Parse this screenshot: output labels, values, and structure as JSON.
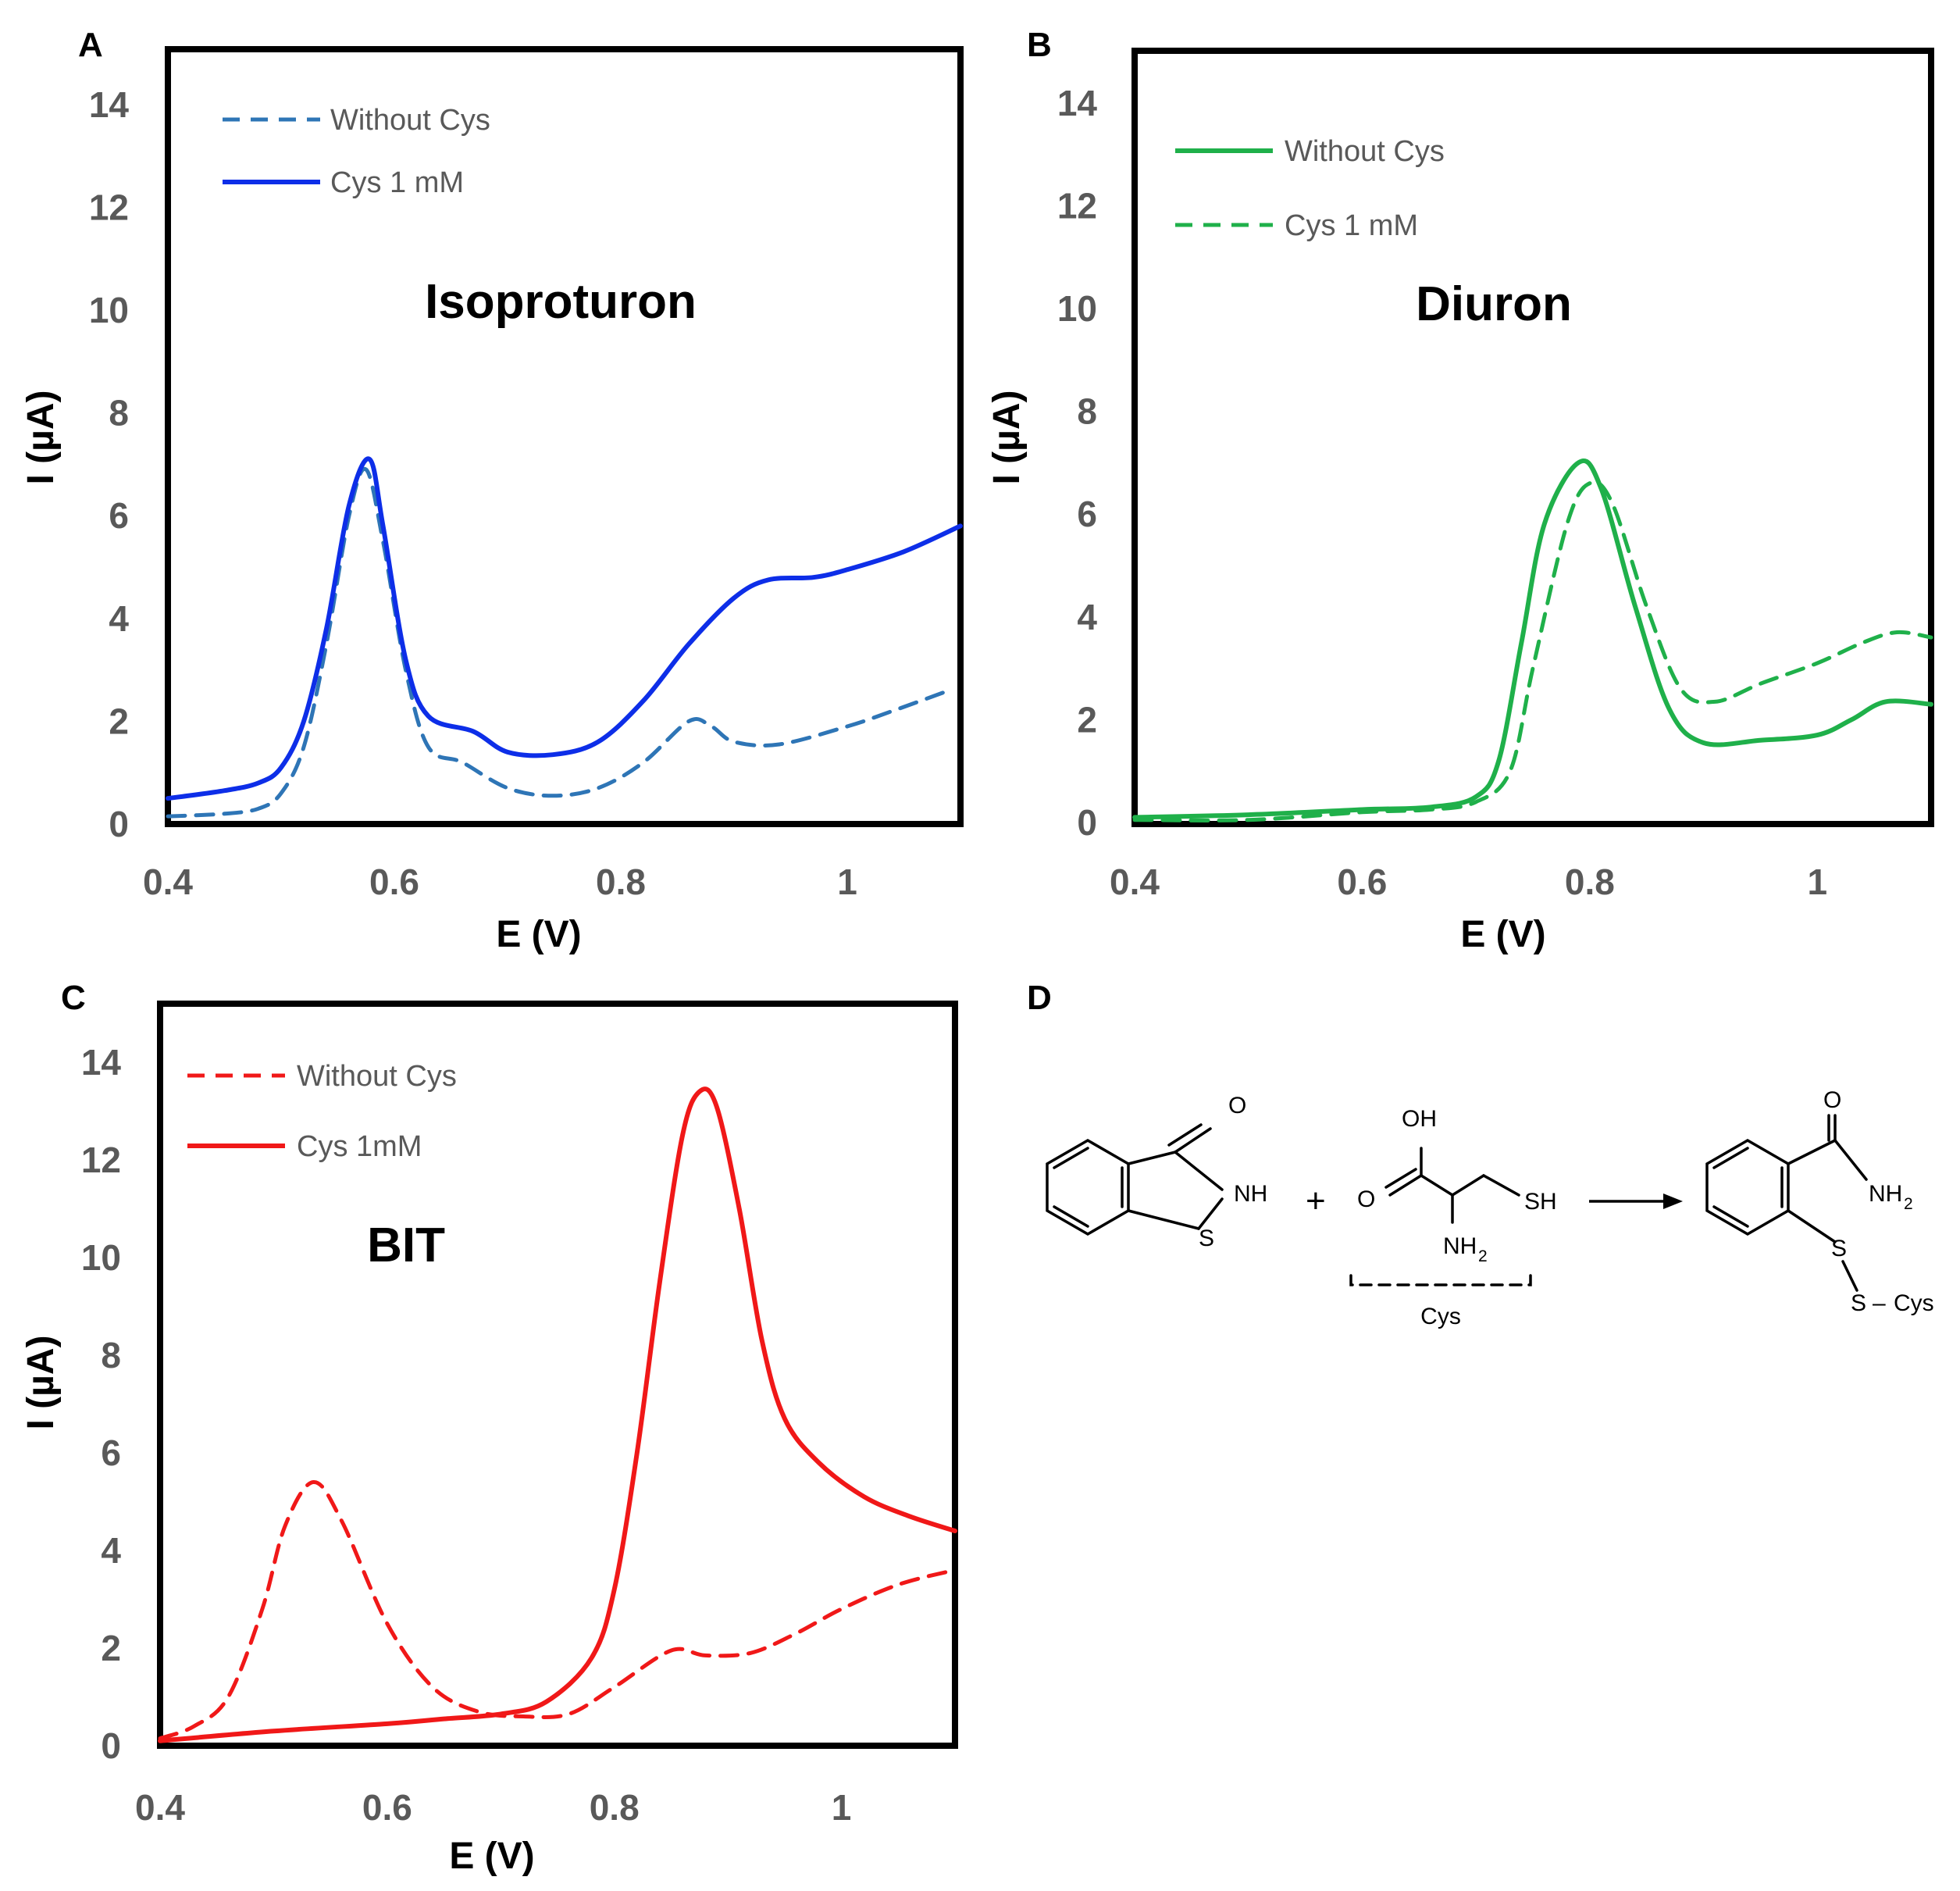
{
  "panels_meta": {
    "A": {
      "letter": "A",
      "analyte": "Isoproturon",
      "legend": [
        "Without Cys",
        "Cys 1 mM"
      ]
    },
    "B": {
      "letter": "B",
      "analyte": "Diuron",
      "legend": [
        "Without Cys",
        "Cys 1 mM"
      ]
    },
    "C": {
      "letter": "C",
      "analyte": "BIT",
      "legend": [
        "Without Cys",
        "Cys 1mM"
      ]
    }
  },
  "chart_data": [
    {
      "panel": "A",
      "type": "line",
      "title": "Isoproturon",
      "xlabel": "E (V)",
      "ylabel": "I (µA)",
      "xlim": [
        0.4,
        1.1
      ],
      "ylim": [
        0,
        15
      ],
      "xticks": [
        0.4,
        0.6,
        0.8,
        1
      ],
      "xtick_labels": [
        "0.4",
        "0.6",
        "0.8",
        "1"
      ],
      "yticks": [
        0,
        2,
        4,
        6,
        8,
        10,
        12,
        14
      ],
      "ytick_labels": [
        "0",
        "2",
        "4",
        "6",
        "8",
        "10",
        "12",
        "14"
      ],
      "legend_position": "top-left",
      "series": [
        {
          "name": "Without Cys",
          "color": "#2e75b6",
          "style": "dashed",
          "x": [
            0.4,
            0.45,
            0.48,
            0.5,
            0.52,
            0.54,
            0.56,
            0.575,
            0.59,
            0.61,
            0.63,
            0.66,
            0.7,
            0.74,
            0.78,
            0.82,
            0.86,
            0.88,
            0.9,
            0.94,
            1.0,
            1.04,
            1.09
          ],
          "y": [
            0.15,
            0.2,
            0.3,
            0.6,
            1.5,
            3.5,
            6.0,
            6.9,
            5.5,
            3.0,
            1.5,
            1.2,
            0.7,
            0.55,
            0.7,
            1.2,
            2.0,
            1.9,
            1.6,
            1.55,
            1.9,
            2.2,
            2.6
          ]
        },
        {
          "name": "Cys 1 mM",
          "color": "#0d2ee8",
          "style": "solid",
          "x": [
            0.4,
            0.45,
            0.48,
            0.5,
            0.52,
            0.54,
            0.56,
            0.578,
            0.59,
            0.61,
            0.63,
            0.67,
            0.7,
            0.74,
            0.78,
            0.82,
            0.86,
            0.9,
            0.93,
            0.97,
            1.0,
            1.05,
            1.1
          ],
          "y": [
            0.5,
            0.65,
            0.8,
            1.1,
            2.0,
            3.8,
            6.2,
            7.1,
            5.8,
            3.2,
            2.1,
            1.8,
            1.4,
            1.35,
            1.6,
            2.4,
            3.5,
            4.4,
            4.75,
            4.8,
            4.95,
            5.3,
            5.8
          ]
        }
      ]
    },
    {
      "panel": "B",
      "type": "line",
      "title": "Diuron",
      "xlabel": "E (V)",
      "ylabel": "I (µA)",
      "xlim": [
        0.4,
        1.1
      ],
      "ylim": [
        0,
        15
      ],
      "xticks": [
        0.4,
        0.6,
        0.8,
        1
      ],
      "xtick_labels": [
        "0.4",
        "0.6",
        "0.8",
        "1"
      ],
      "yticks": [
        0,
        2,
        4,
        6,
        8,
        10,
        12,
        14
      ],
      "ytick_labels": [
        "0",
        "2",
        "4",
        "6",
        "8",
        "10",
        "12",
        "14"
      ],
      "legend_position": "top-left",
      "series": [
        {
          "name": "Without Cys",
          "color": "#1fb04a",
          "style": "solid",
          "x": [
            0.4,
            0.5,
            0.6,
            0.66,
            0.7,
            0.72,
            0.74,
            0.76,
            0.79,
            0.81,
            0.84,
            0.87,
            0.9,
            0.95,
            1.0,
            1.03,
            1.06,
            1.1
          ],
          "y": [
            0.1,
            0.15,
            0.25,
            0.3,
            0.5,
            1.2,
            3.5,
            5.8,
            7.0,
            6.5,
            4.2,
            2.2,
            1.55,
            1.6,
            1.7,
            2.0,
            2.35,
            2.3
          ]
        },
        {
          "name": "Cys 1 mM",
          "color": "#1fb04a",
          "style": "dashed",
          "x": [
            0.4,
            0.5,
            0.6,
            0.66,
            0.7,
            0.73,
            0.75,
            0.78,
            0.8,
            0.82,
            0.85,
            0.88,
            0.91,
            0.95,
            1.0,
            1.04,
            1.07,
            1.1
          ],
          "y": [
            0.05,
            0.05,
            0.2,
            0.25,
            0.4,
            1.0,
            3.0,
            5.8,
            6.6,
            6.2,
            4.2,
            2.6,
            2.35,
            2.7,
            3.1,
            3.5,
            3.7,
            3.6
          ]
        }
      ]
    },
    {
      "panel": "C",
      "type": "line",
      "title": "BIT",
      "xlabel": "E (V)",
      "ylabel": "I (µA)",
      "xlim": [
        0.4,
        1.1
      ],
      "ylim": [
        0,
        15
      ],
      "xticks": [
        0.4,
        0.6,
        0.8,
        1
      ],
      "xtick_labels": [
        "0.4",
        "0.6",
        "0.8",
        "1"
      ],
      "yticks": [
        0,
        2,
        4,
        6,
        8,
        10,
        12,
        14
      ],
      "ytick_labels": [
        "0",
        "2",
        "4",
        "6",
        "8",
        "10",
        "12",
        "14"
      ],
      "legend_position": "top-left",
      "series": [
        {
          "name": "Without Cys",
          "color": "#f01818",
          "style": "dashed",
          "x": [
            0.4,
            0.43,
            0.46,
            0.49,
            0.51,
            0.535,
            0.56,
            0.6,
            0.64,
            0.68,
            0.72,
            0.76,
            0.8,
            0.85,
            0.88,
            0.92,
            0.96,
            1.0,
            1.05,
            1.1
          ],
          "y": [
            0.15,
            0.4,
            1.0,
            2.8,
            4.5,
            5.4,
            4.6,
            2.5,
            1.2,
            0.7,
            0.6,
            0.65,
            1.2,
            1.95,
            1.85,
            1.9,
            2.3,
            2.8,
            3.3,
            3.6
          ]
        },
        {
          "name": "Cys 1mM",
          "color": "#f01818",
          "style": "solid",
          "x": [
            0.4,
            0.5,
            0.6,
            0.65,
            0.7,
            0.74,
            0.78,
            0.8,
            0.82,
            0.84,
            0.86,
            0.875,
            0.89,
            0.91,
            0.93,
            0.95,
            0.98,
            1.02,
            1.06,
            1.1
          ],
          "y": [
            0.1,
            0.3,
            0.45,
            0.55,
            0.65,
            0.9,
            1.8,
            3.2,
            6.0,
            9.5,
            12.5,
            13.4,
            13.1,
            11.0,
            8.3,
            6.7,
            5.8,
            5.1,
            4.7,
            4.4
          ]
        }
      ]
    }
  ],
  "scheme": {
    "letter": "D",
    "plus": "+",
    "reactant1": {
      "o_label": "O",
      "nh_label": "NH",
      "s_label": "S"
    },
    "reactant2": {
      "oh_label": "OH",
      "o_label": "O",
      "sh_label": "SH",
      "nh2_label": "NH",
      "nh2_sub": "2",
      "bracket_label": "Cys"
    },
    "product": {
      "o_label": "O",
      "nh2_label": "NH",
      "nh2_sub": "2",
      "s1_label": "S",
      "s2_label": "S",
      "dash": "–",
      "cys_label": "Cys"
    }
  }
}
